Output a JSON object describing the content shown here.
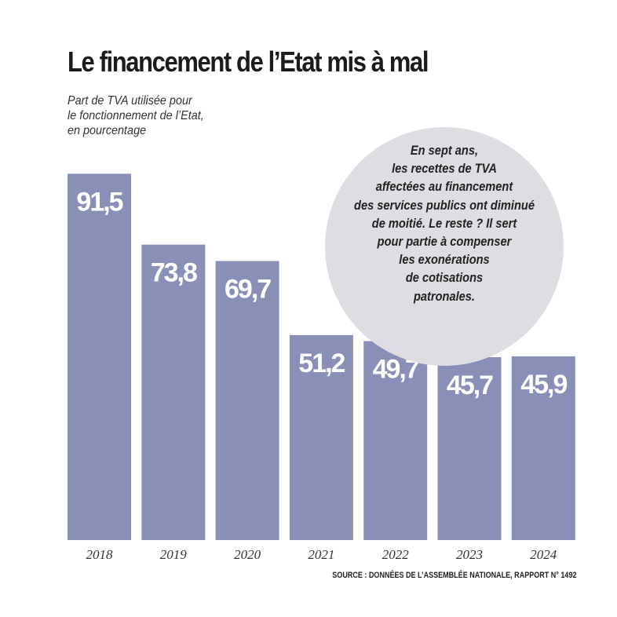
{
  "title": "Le financement de l’Etat mis à mal",
  "subtitle_lines": [
    "Part de TVA utilisée pour",
    "le fonctionnement de l’Etat,",
    "en pourcentage"
  ],
  "callout_lines": [
    "En sept ans,",
    "les recettes de TVA",
    "affectées au financement",
    "des services publics ont diminué",
    "de moitié. Le reste ? Il sert",
    "pour partie à compenser",
    "les exonérations",
    "de cotisations",
    "patronales."
  ],
  "source": "SOURCE : DONNÉES DE L’ASSEMBLÉE NATIONALE, RAPPORT N° 1492",
  "colors": {
    "bar": "#8a8fb8",
    "callout_bg": "#dedde2",
    "title": "#1b1b1b"
  },
  "chart_data": {
    "type": "bar",
    "categories": [
      "2018",
      "2019",
      "2020",
      "2021",
      "2022",
      "2023",
      "2024"
    ],
    "values": [
      91.5,
      73.8,
      69.7,
      51.2,
      49.7,
      45.7,
      45.9
    ],
    "value_labels": [
      "91,5",
      "73,8",
      "69,7",
      "51,2",
      "49,7",
      "45,7",
      "45,9"
    ],
    "title": "Le financement de l’Etat mis à mal",
    "subtitle": "Part de TVA utilisée pour le fonctionnement de l’Etat, en pourcentage",
    "xlabel": "",
    "ylabel": "",
    "ylim": [
      0,
      100
    ],
    "grid": false,
    "legend": "none"
  }
}
